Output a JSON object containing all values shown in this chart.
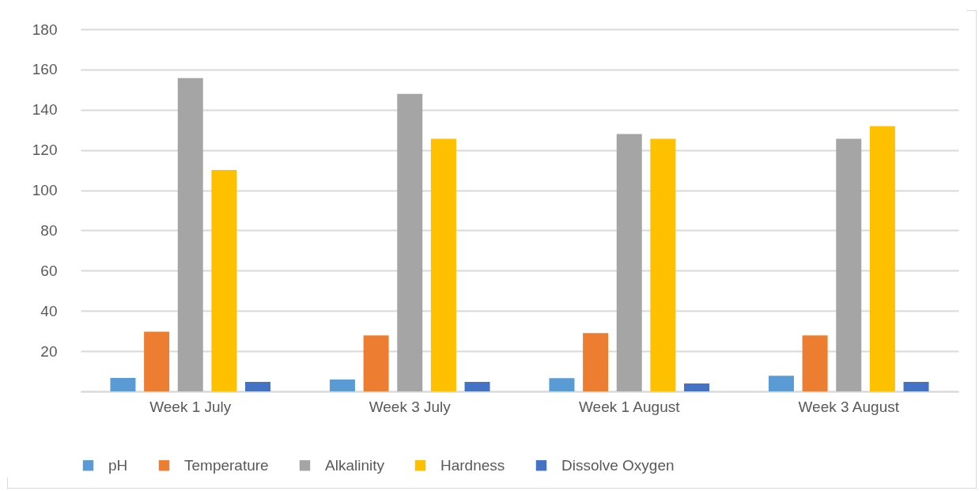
{
  "chart_data": {
    "type": "bar",
    "categories": [
      "Week 1 July",
      "Week 3 July",
      "Week 1 August",
      "Week 3 August"
    ],
    "series": [
      {
        "name": "pH",
        "color": "#5b9bd5",
        "values": [
          6.7,
          5.9,
          6.6,
          7.8
        ]
      },
      {
        "name": "Temperature",
        "color": "#ed7d31",
        "values": [
          29.7,
          27.8,
          29.0,
          27.8
        ]
      },
      {
        "name": "Alkalinity",
        "color": "#a5a5a5",
        "values": [
          155.7,
          147.9,
          127.9,
          125.6
        ]
      },
      {
        "name": "Hardness",
        "color": "#ffc000",
        "values": [
          110,
          125.6,
          125.6,
          131.9
        ]
      },
      {
        "name": "Dissolve Oxygen",
        "color": "#4472c4",
        "values": [
          4.7,
          4.7,
          3.9,
          4.7
        ]
      }
    ],
    "ylim": [
      0,
      180
    ],
    "yticks": [
      {
        "value": 0,
        "label": null
      },
      20,
      40,
      60,
      80,
      100,
      120,
      140,
      160,
      180
    ],
    "grid": "y",
    "legend": "bottom"
  }
}
